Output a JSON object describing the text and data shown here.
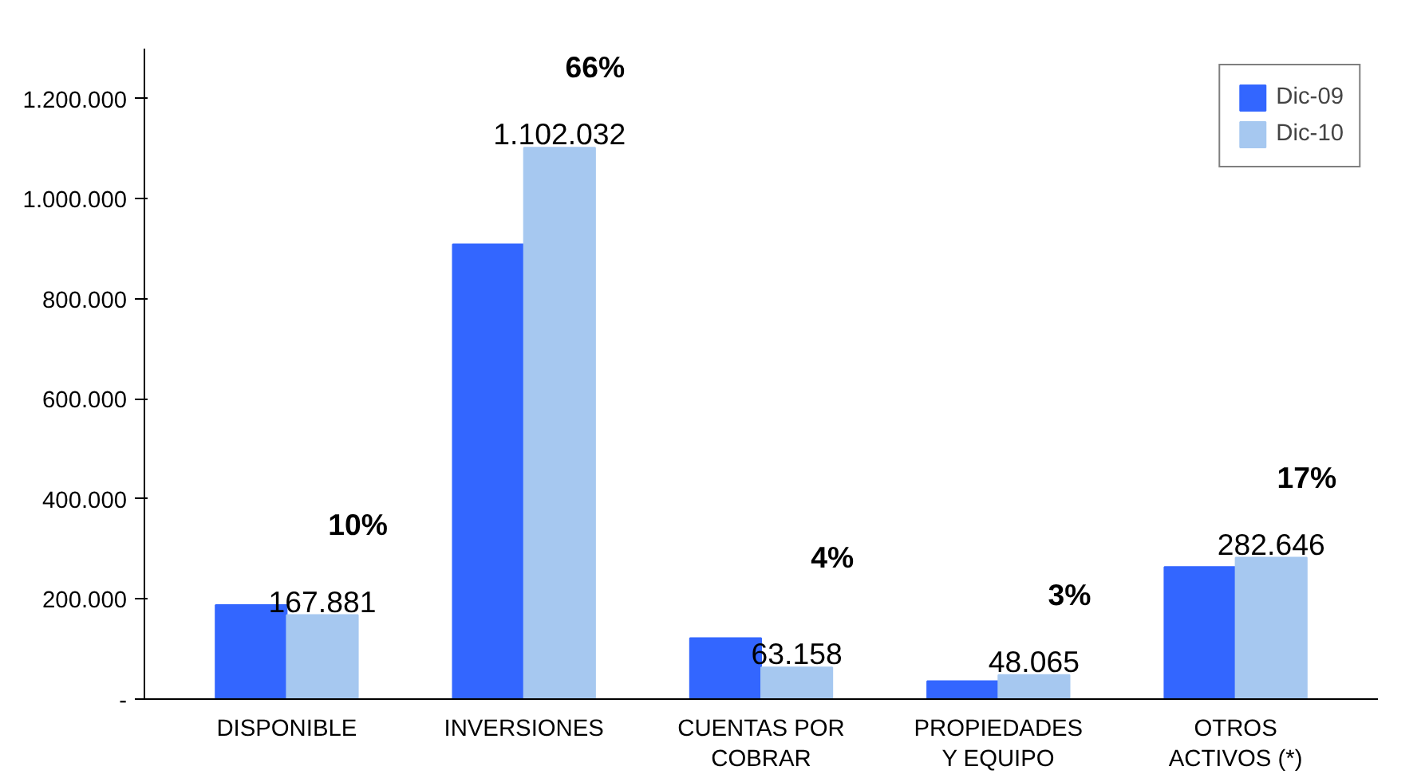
{
  "chart_data": {
    "type": "bar",
    "categories": [
      "DISPONIBLE",
      "INVERSIONES",
      "CUENTAS POR COBRAR",
      "PROPIEDADES Y EQUIPO",
      "OTROS ACTIVOS (*)"
    ],
    "series": [
      {
        "name": "Dic-09",
        "color": "#3366ff",
        "values": [
          188000,
          909000,
          122000,
          36000,
          264000
        ]
      },
      {
        "name": "Dic-10",
        "color": "#a6c8f0",
        "values": [
          167881,
          1102032,
          63158,
          48065,
          282646
        ],
        "value_labels": [
          "167.881",
          "1.102.032",
          "63.158",
          "48.065",
          "282.646"
        ]
      }
    ],
    "annotations": [
      "10%",
      "66%",
      "4%",
      "3%",
      "17%"
    ],
    "ylim": [
      0,
      1300000
    ],
    "yticks": [
      {
        "value": 0,
        "label": "-"
      },
      {
        "value": 200000,
        "label": "200.000"
      },
      {
        "value": 400000,
        "label": "400.000"
      },
      {
        "value": 600000,
        "label": "600.000"
      },
      {
        "value": 800000,
        "label": "800.000"
      },
      {
        "value": 1000000,
        "label": "1.000.000"
      },
      {
        "value": 1200000,
        "label": "1.200.000"
      }
    ],
    "grid": false,
    "legend": "top right"
  }
}
